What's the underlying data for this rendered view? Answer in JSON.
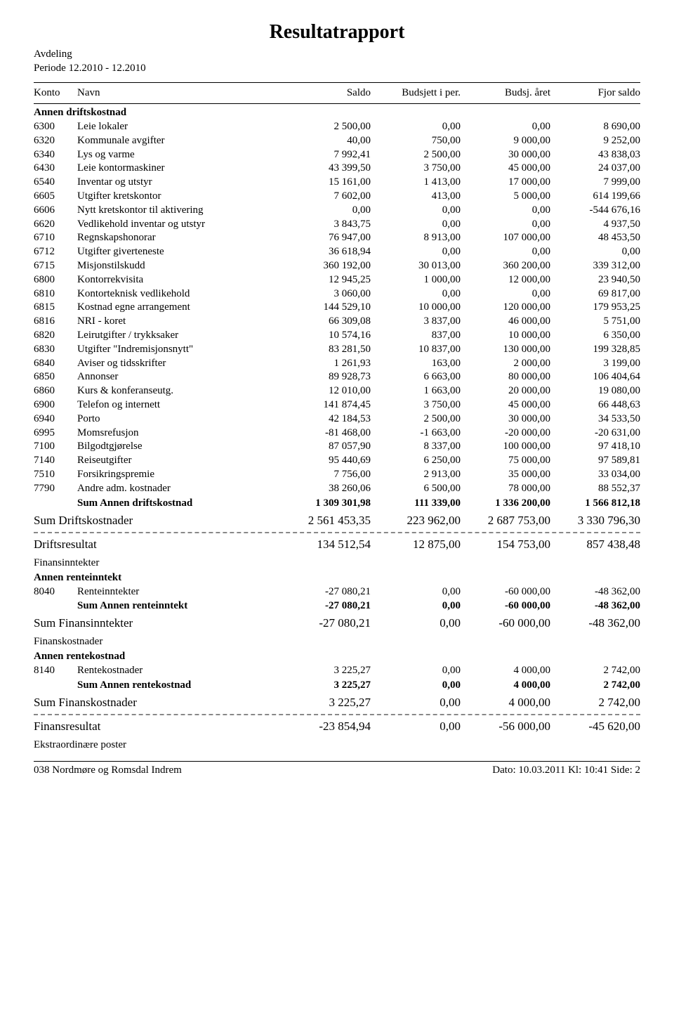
{
  "report": {
    "title": "Resultatrapport",
    "subdivision_label": "Avdeling",
    "period_label": "Periode  12.2010 - 12.2010"
  },
  "headers": {
    "konto": "Konto",
    "navn": "Navn",
    "saldo": "Saldo",
    "budsjett_per": "Budsjett i per.",
    "budsjett_aar": "Budsj. året",
    "fjor_saldo": "Fjor saldo"
  },
  "sections": [
    {
      "group_title": "Annen driftskostnad",
      "rows": [
        {
          "konto": "6300",
          "navn": "Leie lokaler",
          "c1": "2 500,00",
          "c2": "0,00",
          "c3": "0,00",
          "c4": "8 690,00"
        },
        {
          "konto": "6320",
          "navn": "Kommunale avgifter",
          "c1": "40,00",
          "c2": "750,00",
          "c3": "9 000,00",
          "c4": "9 252,00"
        },
        {
          "konto": "6340",
          "navn": "Lys og varme",
          "c1": "7 992,41",
          "c2": "2 500,00",
          "c3": "30 000,00",
          "c4": "43 838,03"
        },
        {
          "konto": "6430",
          "navn": "Leie kontormaskiner",
          "c1": "43 399,50",
          "c2": "3 750,00",
          "c3": "45 000,00",
          "c4": "24 037,00"
        },
        {
          "konto": "6540",
          "navn": "Inventar og utstyr",
          "c1": "15 161,00",
          "c2": "1 413,00",
          "c3": "17 000,00",
          "c4": "7 999,00"
        },
        {
          "konto": "6605",
          "navn": "Utgifter kretskontor",
          "c1": "7 602,00",
          "c2": "413,00",
          "c3": "5 000,00",
          "c4": "614 199,66"
        },
        {
          "konto": "6606",
          "navn": "Nytt kretskontor til aktivering",
          "c1": "0,00",
          "c2": "0,00",
          "c3": "0,00",
          "c4": "-544 676,16"
        },
        {
          "konto": "6620",
          "navn": "Vedlikehold inventar og utstyr",
          "c1": "3 843,75",
          "c2": "0,00",
          "c3": "0,00",
          "c4": "4 937,50"
        },
        {
          "konto": "6710",
          "navn": "Regnskapshonorar",
          "c1": "76 947,00",
          "c2": "8 913,00",
          "c3": "107 000,00",
          "c4": "48 453,50"
        },
        {
          "konto": "6712",
          "navn": "Utgifter giverteneste",
          "c1": "36 618,94",
          "c2": "0,00",
          "c3": "0,00",
          "c4": "0,00"
        },
        {
          "konto": "6715",
          "navn": "Misjonstilskudd",
          "c1": "360 192,00",
          "c2": "30 013,00",
          "c3": "360 200,00",
          "c4": "339 312,00"
        },
        {
          "konto": "6800",
          "navn": "Kontorrekvisita",
          "c1": "12 945,25",
          "c2": "1 000,00",
          "c3": "12 000,00",
          "c4": "23 940,50"
        },
        {
          "konto": "6810",
          "navn": "Kontorteknisk vedlikehold",
          "c1": "3 060,00",
          "c2": "0,00",
          "c3": "0,00",
          "c4": "69 817,00"
        },
        {
          "konto": "6815",
          "navn": "Kostnad egne arrangement",
          "c1": "144 529,10",
          "c2": "10 000,00",
          "c3": "120 000,00",
          "c4": "179 953,25"
        },
        {
          "konto": "6816",
          "navn": "NRI - koret",
          "c1": "66 309,08",
          "c2": "3 837,00",
          "c3": "46 000,00",
          "c4": "5 751,00"
        },
        {
          "konto": "6820",
          "navn": "Leirutgifter / trykksaker",
          "c1": "10 574,16",
          "c2": "837,00",
          "c3": "10 000,00",
          "c4": "6 350,00"
        },
        {
          "konto": "6830",
          "navn": "Utgifter \"Indremisjonsnytt\"",
          "c1": "83 281,50",
          "c2": "10 837,00",
          "c3": "130 000,00",
          "c4": "199 328,85"
        },
        {
          "konto": "6840",
          "navn": "Aviser og tidsskrifter",
          "c1": "1 261,93",
          "c2": "163,00",
          "c3": "2 000,00",
          "c4": "3 199,00"
        },
        {
          "konto": "6850",
          "navn": "Annonser",
          "c1": "89 928,73",
          "c2": "6 663,00",
          "c3": "80 000,00",
          "c4": "106 404,64"
        },
        {
          "konto": "6860",
          "navn": "Kurs & konferanseutg.",
          "c1": "12 010,00",
          "c2": "1 663,00",
          "c3": "20 000,00",
          "c4": "19 080,00"
        },
        {
          "konto": "6900",
          "navn": "Telefon og internett",
          "c1": "141 874,45",
          "c2": "3 750,00",
          "c3": "45 000,00",
          "c4": "66 448,63"
        },
        {
          "konto": "6940",
          "navn": "Porto",
          "c1": "42 184,53",
          "c2": "2 500,00",
          "c3": "30 000,00",
          "c4": "34 533,50"
        },
        {
          "konto": "6995",
          "navn": "Momsrefusjon",
          "c1": "-81 468,00",
          "c2": "-1 663,00",
          "c3": "-20 000,00",
          "c4": "-20 631,00"
        },
        {
          "konto": "7100",
          "navn": "Bilgodtgjørelse",
          "c1": "87 057,90",
          "c2": "8 337,00",
          "c3": "100 000,00",
          "c4": "97 418,10"
        },
        {
          "konto": "7140",
          "navn": "Reiseutgifter",
          "c1": "95 440,69",
          "c2": "6 250,00",
          "c3": "75 000,00",
          "c4": "97 589,81"
        },
        {
          "konto": "7510",
          "navn": "Forsikringspremie",
          "c1": "7 756,00",
          "c2": "2 913,00",
          "c3": "35 000,00",
          "c4": "33 034,00"
        },
        {
          "konto": "7790",
          "navn": "Andre adm. kostnader",
          "c1": "38 260,06",
          "c2": "6 500,00",
          "c3": "78 000,00",
          "c4": "88 552,37"
        }
      ],
      "sum": {
        "label": "Sum  Annen driftskostnad",
        "c1": "1 309 301,98",
        "c2": "111 339,00",
        "c3": "1 336 200,00",
        "c4": "1 566 812,18"
      }
    }
  ],
  "totals": [
    {
      "label": "Sum Driftskostnader",
      "c1": "2 561 453,35",
      "c2": "223 962,00",
      "c3": "2 687 753,00",
      "c4": "3 330 796,30",
      "dashed_after": true
    },
    {
      "label": "Driftsresultat",
      "c1": "134 512,54",
      "c2": "12 875,00",
      "c3": "154 753,00",
      "c4": "857 438,48"
    }
  ],
  "finans": [
    {
      "section": "Finansinntekter",
      "group": "Annen renteinntekt",
      "rows": [
        {
          "konto": "8040",
          "navn": "Renteinntekter",
          "c1": "-27 080,21",
          "c2": "0,00",
          "c3": "-60 000,00",
          "c4": "-48 362,00"
        }
      ],
      "sum": {
        "label": "Sum  Annen renteinntekt",
        "c1": "-27 080,21",
        "c2": "0,00",
        "c3": "-60 000,00",
        "c4": "-48 362,00"
      },
      "total": {
        "label": "Sum Finansinntekter",
        "c1": "-27 080,21",
        "c2": "0,00",
        "c3": "-60 000,00",
        "c4": "-48 362,00"
      }
    },
    {
      "section": "Finanskostnader",
      "group": "Annen rentekostnad",
      "rows": [
        {
          "konto": "8140",
          "navn": "Rentekostnader",
          "c1": "3 225,27",
          "c2": "0,00",
          "c3": "4 000,00",
          "c4": "2 742,00"
        }
      ],
      "sum": {
        "label": "Sum  Annen rentekostnad",
        "c1": "3 225,27",
        "c2": "0,00",
        "c3": "4 000,00",
        "c4": "2 742,00"
      },
      "total": {
        "label": "Sum Finanskostnader",
        "c1": "3 225,27",
        "c2": "0,00",
        "c3": "4 000,00",
        "c4": "2 742,00",
        "dashed_after": true
      }
    }
  ],
  "finansresultat": {
    "label": "Finansresultat",
    "c1": "-23 854,94",
    "c2": "0,00",
    "c3": "-56 000,00",
    "c4": "-45 620,00"
  },
  "extra_section": "Ekstraordinære poster",
  "footer": {
    "left": "038 Nordmøre og Romsdal Indrem",
    "right": "Dato: 10.03.2011   Kl: 10:41   Side: 2"
  }
}
